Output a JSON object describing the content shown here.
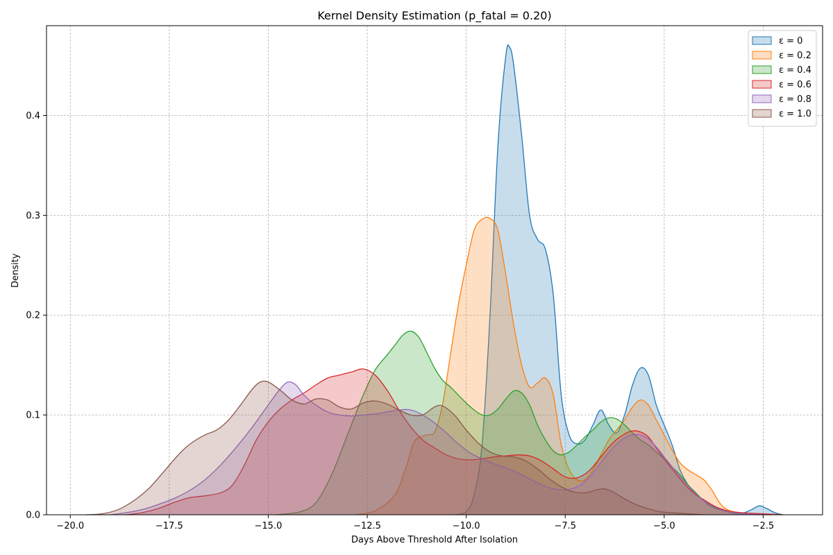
{
  "chart_data": {
    "type": "area",
    "title": "Kernel Density Estimation (p_fatal = 0.20)",
    "xlabel": "Days Above Threshold After Isolation",
    "ylabel": "Density",
    "xlim": [
      -20.6,
      -1.0
    ],
    "ylim": [
      0.0,
      0.49
    ],
    "xticks": [
      -20.0,
      -17.5,
      -15.0,
      -12.5,
      -10.0,
      -7.5,
      -5.0,
      -2.5
    ],
    "xtick_labels": [
      "−20.0",
      "−17.5",
      "−15.0",
      "−12.5",
      "−10.0",
      "−7.5",
      "−5.0",
      "−2.5"
    ],
    "yticks": [
      0.0,
      0.1,
      0.2,
      0.3,
      0.4
    ],
    "ytick_labels": [
      "0.0",
      "0.1",
      "0.2",
      "0.3",
      "0.4"
    ],
    "grid": true,
    "legend_placement": "top-right",
    "series": [
      {
        "name": "ε = 0",
        "color": "#1f77b4",
        "points": [
          [
            -10.3,
            0
          ],
          [
            -10.0,
            0.003
          ],
          [
            -9.8,
            0.02
          ],
          [
            -9.6,
            0.07
          ],
          [
            -9.4,
            0.2
          ],
          [
            -9.2,
            0.37
          ],
          [
            -9.0,
            0.46
          ],
          [
            -8.9,
            0.468
          ],
          [
            -8.8,
            0.45
          ],
          [
            -8.6,
            0.38
          ],
          [
            -8.4,
            0.3
          ],
          [
            -8.2,
            0.276
          ],
          [
            -8.0,
            0.266
          ],
          [
            -7.8,
            0.22
          ],
          [
            -7.6,
            0.12
          ],
          [
            -7.4,
            0.08
          ],
          [
            -7.2,
            0.071
          ],
          [
            -7.0,
            0.075
          ],
          [
            -6.8,
            0.09
          ],
          [
            -6.6,
            0.105
          ],
          [
            -6.4,
            0.09
          ],
          [
            -6.2,
            0.082
          ],
          [
            -6.0,
            0.1
          ],
          [
            -5.8,
            0.13
          ],
          [
            -5.6,
            0.147
          ],
          [
            -5.4,
            0.14
          ],
          [
            -5.2,
            0.11
          ],
          [
            -5.0,
            0.09
          ],
          [
            -4.8,
            0.07
          ],
          [
            -4.6,
            0.045
          ],
          [
            -4.4,
            0.03
          ],
          [
            -4.2,
            0.02
          ],
          [
            -4.0,
            0.015
          ],
          [
            -3.8,
            0.01
          ],
          [
            -3.5,
            0.004
          ],
          [
            -3.1,
            0.001
          ],
          [
            -2.8,
            0.005
          ],
          [
            -2.6,
            0.009
          ],
          [
            -2.4,
            0.006
          ],
          [
            -2.2,
            0.002
          ],
          [
            -2.0,
            0
          ]
        ]
      },
      {
        "name": "ε = 0.2",
        "color": "#ff7f0e",
        "points": [
          [
            -12.8,
            0
          ],
          [
            -12.3,
            0.004
          ],
          [
            -11.8,
            0.02
          ],
          [
            -11.5,
            0.05
          ],
          [
            -11.3,
            0.074
          ],
          [
            -11.0,
            0.08
          ],
          [
            -10.8,
            0.083
          ],
          [
            -10.6,
            0.11
          ],
          [
            -10.4,
            0.16
          ],
          [
            -10.2,
            0.21
          ],
          [
            -10.0,
            0.25
          ],
          [
            -9.8,
            0.285
          ],
          [
            -9.6,
            0.296
          ],
          [
            -9.4,
            0.297
          ],
          [
            -9.2,
            0.285
          ],
          [
            -9.0,
            0.24
          ],
          [
            -8.8,
            0.19
          ],
          [
            -8.6,
            0.15
          ],
          [
            -8.4,
            0.128
          ],
          [
            -8.2,
            0.132
          ],
          [
            -8.0,
            0.137
          ],
          [
            -7.8,
            0.12
          ],
          [
            -7.6,
            0.07
          ],
          [
            -7.4,
            0.045
          ],
          [
            -7.2,
            0.035
          ],
          [
            -7.0,
            0.035
          ],
          [
            -6.8,
            0.045
          ],
          [
            -6.6,
            0.06
          ],
          [
            -6.4,
            0.075
          ],
          [
            -6.2,
            0.085
          ],
          [
            -6.0,
            0.095
          ],
          [
            -5.8,
            0.108
          ],
          [
            -5.6,
            0.115
          ],
          [
            -5.4,
            0.11
          ],
          [
            -5.2,
            0.095
          ],
          [
            -5.0,
            0.08
          ],
          [
            -4.8,
            0.065
          ],
          [
            -4.6,
            0.052
          ],
          [
            -4.4,
            0.045
          ],
          [
            -4.2,
            0.04
          ],
          [
            -4.0,
            0.035
          ],
          [
            -3.8,
            0.025
          ],
          [
            -3.6,
            0.012
          ],
          [
            -3.4,
            0.005
          ],
          [
            -3.0,
            0.001
          ],
          [
            -2.6,
            0
          ]
        ]
      },
      {
        "name": "ε = 0.4",
        "color": "#2ca02c",
        "points": [
          [
            -14.8,
            0
          ],
          [
            -14.2,
            0.003
          ],
          [
            -13.8,
            0.012
          ],
          [
            -13.4,
            0.04
          ],
          [
            -13.0,
            0.08
          ],
          [
            -12.6,
            0.12
          ],
          [
            -12.3,
            0.145
          ],
          [
            -12.0,
            0.16
          ],
          [
            -11.8,
            0.17
          ],
          [
            -11.6,
            0.18
          ],
          [
            -11.4,
            0.184
          ],
          [
            -11.2,
            0.178
          ],
          [
            -11.0,
            0.163
          ],
          [
            -10.8,
            0.147
          ],
          [
            -10.6,
            0.135
          ],
          [
            -10.4,
            0.128
          ],
          [
            -10.2,
            0.12
          ],
          [
            -10.0,
            0.112
          ],
          [
            -9.8,
            0.105
          ],
          [
            -9.6,
            0.1
          ],
          [
            -9.4,
            0.1
          ],
          [
            -9.2,
            0.106
          ],
          [
            -9.0,
            0.116
          ],
          [
            -8.8,
            0.124
          ],
          [
            -8.6,
            0.122
          ],
          [
            -8.4,
            0.11
          ],
          [
            -8.2,
            0.09
          ],
          [
            -8.0,
            0.075
          ],
          [
            -7.8,
            0.064
          ],
          [
            -7.6,
            0.06
          ],
          [
            -7.4,
            0.063
          ],
          [
            -7.2,
            0.07
          ],
          [
            -7.0,
            0.078
          ],
          [
            -6.8,
            0.085
          ],
          [
            -6.6,
            0.093
          ],
          [
            -6.4,
            0.097
          ],
          [
            -6.2,
            0.096
          ],
          [
            -6.0,
            0.09
          ],
          [
            -5.8,
            0.082
          ],
          [
            -5.6,
            0.075
          ],
          [
            -5.4,
            0.07
          ],
          [
            -5.2,
            0.063
          ],
          [
            -5.0,
            0.056
          ],
          [
            -4.8,
            0.048
          ],
          [
            -4.6,
            0.04
          ],
          [
            -4.4,
            0.03
          ],
          [
            -4.2,
            0.022
          ],
          [
            -4.0,
            0.014
          ],
          [
            -3.8,
            0.008
          ],
          [
            -3.4,
            0.003
          ],
          [
            -3.0,
            0.001
          ],
          [
            -2.6,
            0
          ]
        ]
      },
      {
        "name": "ε = 0.6",
        "color": "#d62728",
        "points": [
          [
            -18.6,
            0
          ],
          [
            -18.2,
            0.002
          ],
          [
            -17.8,
            0.006
          ],
          [
            -17.4,
            0.012
          ],
          [
            -17.0,
            0.017
          ],
          [
            -16.6,
            0.019
          ],
          [
            -16.2,
            0.022
          ],
          [
            -15.9,
            0.03
          ],
          [
            -15.6,
            0.05
          ],
          [
            -15.3,
            0.075
          ],
          [
            -15.0,
            0.093
          ],
          [
            -14.7,
            0.106
          ],
          [
            -14.4,
            0.115
          ],
          [
            -14.1,
            0.122
          ],
          [
            -13.8,
            0.13
          ],
          [
            -13.5,
            0.137
          ],
          [
            -13.2,
            0.14
          ],
          [
            -12.9,
            0.143
          ],
          [
            -12.6,
            0.146
          ],
          [
            -12.3,
            0.14
          ],
          [
            -12.0,
            0.125
          ],
          [
            -11.7,
            0.105
          ],
          [
            -11.4,
            0.088
          ],
          [
            -11.1,
            0.075
          ],
          [
            -10.8,
            0.067
          ],
          [
            -10.5,
            0.06
          ],
          [
            -10.2,
            0.056
          ],
          [
            -9.9,
            0.055
          ],
          [
            -9.6,
            0.056
          ],
          [
            -9.3,
            0.058
          ],
          [
            -9.0,
            0.059
          ],
          [
            -8.7,
            0.06
          ],
          [
            -8.4,
            0.059
          ],
          [
            -8.1,
            0.054
          ],
          [
            -7.8,
            0.046
          ],
          [
            -7.5,
            0.038
          ],
          [
            -7.2,
            0.037
          ],
          [
            -6.9,
            0.044
          ],
          [
            -6.6,
            0.058
          ],
          [
            -6.3,
            0.072
          ],
          [
            -6.0,
            0.081
          ],
          [
            -5.8,
            0.084
          ],
          [
            -5.6,
            0.083
          ],
          [
            -5.4,
            0.078
          ],
          [
            -5.2,
            0.067
          ],
          [
            -5.0,
            0.056
          ],
          [
            -4.8,
            0.046
          ],
          [
            -4.6,
            0.036
          ],
          [
            -4.4,
            0.027
          ],
          [
            -4.2,
            0.02
          ],
          [
            -4.0,
            0.015
          ],
          [
            -3.7,
            0.008
          ],
          [
            -3.4,
            0.004
          ],
          [
            -3.0,
            0.002
          ],
          [
            -2.5,
            0.001
          ],
          [
            -2.0,
            0
          ]
        ]
      },
      {
        "name": "ε = 0.8",
        "color": "#9467bd",
        "points": [
          [
            -19.0,
            0
          ],
          [
            -18.6,
            0.002
          ],
          [
            -18.2,
            0.005
          ],
          [
            -17.8,
            0.01
          ],
          [
            -17.4,
            0.016
          ],
          [
            -17.0,
            0.024
          ],
          [
            -16.6,
            0.035
          ],
          [
            -16.2,
            0.05
          ],
          [
            -15.8,
            0.068
          ],
          [
            -15.4,
            0.088
          ],
          [
            -15.0,
            0.11
          ],
          [
            -14.7,
            0.126
          ],
          [
            -14.5,
            0.133
          ],
          [
            -14.3,
            0.13
          ],
          [
            -14.1,
            0.12
          ],
          [
            -13.8,
            0.11
          ],
          [
            -13.5,
            0.103
          ],
          [
            -13.2,
            0.1
          ],
          [
            -12.9,
            0.099
          ],
          [
            -12.6,
            0.1
          ],
          [
            -12.3,
            0.101
          ],
          [
            -12.0,
            0.103
          ],
          [
            -11.7,
            0.105
          ],
          [
            -11.4,
            0.105
          ],
          [
            -11.1,
            0.1
          ],
          [
            -10.8,
            0.092
          ],
          [
            -10.5,
            0.082
          ],
          [
            -10.2,
            0.071
          ],
          [
            -9.9,
            0.062
          ],
          [
            -9.6,
            0.056
          ],
          [
            -9.3,
            0.051
          ],
          [
            -9.0,
            0.047
          ],
          [
            -8.7,
            0.042
          ],
          [
            -8.4,
            0.036
          ],
          [
            -8.1,
            0.03
          ],
          [
            -7.8,
            0.026
          ],
          [
            -7.5,
            0.025
          ],
          [
            -7.2,
            0.028
          ],
          [
            -6.9,
            0.037
          ],
          [
            -6.6,
            0.052
          ],
          [
            -6.3,
            0.067
          ],
          [
            -6.0,
            0.077
          ],
          [
            -5.8,
            0.08
          ],
          [
            -5.6,
            0.08
          ],
          [
            -5.4,
            0.076
          ],
          [
            -5.2,
            0.068
          ],
          [
            -5.0,
            0.058
          ],
          [
            -4.8,
            0.048
          ],
          [
            -4.6,
            0.038
          ],
          [
            -4.4,
            0.029
          ],
          [
            -4.2,
            0.021
          ],
          [
            -4.0,
            0.014
          ],
          [
            -3.7,
            0.007
          ],
          [
            -3.4,
            0.003
          ],
          [
            -3.0,
            0.001
          ],
          [
            -2.5,
            0
          ]
        ]
      },
      {
        "name": "ε = 1.0",
        "color": "#8c564b",
        "points": [
          [
            -19.6,
            0
          ],
          [
            -19.2,
            0.001
          ],
          [
            -18.8,
            0.005
          ],
          [
            -18.4,
            0.014
          ],
          [
            -18.0,
            0.027
          ],
          [
            -17.6,
            0.045
          ],
          [
            -17.2,
            0.063
          ],
          [
            -16.9,
            0.073
          ],
          [
            -16.6,
            0.08
          ],
          [
            -16.3,
            0.085
          ],
          [
            -16.0,
            0.095
          ],
          [
            -15.7,
            0.11
          ],
          [
            -15.4,
            0.126
          ],
          [
            -15.2,
            0.133
          ],
          [
            -15.0,
            0.133
          ],
          [
            -14.7,
            0.125
          ],
          [
            -14.4,
            0.115
          ],
          [
            -14.1,
            0.111
          ],
          [
            -13.8,
            0.116
          ],
          [
            -13.5,
            0.115
          ],
          [
            -13.2,
            0.108
          ],
          [
            -12.9,
            0.106
          ],
          [
            -12.6,
            0.112
          ],
          [
            -12.3,
            0.114
          ],
          [
            -12.0,
            0.111
          ],
          [
            -11.7,
            0.105
          ],
          [
            -11.4,
            0.1
          ],
          [
            -11.1,
            0.1
          ],
          [
            -10.8,
            0.108
          ],
          [
            -10.6,
            0.109
          ],
          [
            -10.3,
            0.1
          ],
          [
            -10.0,
            0.085
          ],
          [
            -9.7,
            0.072
          ],
          [
            -9.4,
            0.063
          ],
          [
            -9.1,
            0.059
          ],
          [
            -8.8,
            0.058
          ],
          [
            -8.5,
            0.054
          ],
          [
            -8.2,
            0.046
          ],
          [
            -7.9,
            0.036
          ],
          [
            -7.6,
            0.028
          ],
          [
            -7.3,
            0.023
          ],
          [
            -7.0,
            0.022
          ],
          [
            -6.7,
            0.025
          ],
          [
            -6.5,
            0.026
          ],
          [
            -6.3,
            0.023
          ],
          [
            -6.0,
            0.016
          ],
          [
            -5.7,
            0.01
          ],
          [
            -5.4,
            0.006
          ],
          [
            -5.1,
            0.003
          ],
          [
            -4.8,
            0.002
          ],
          [
            -4.4,
            0.001
          ],
          [
            -4.0,
            0
          ]
        ]
      }
    ]
  }
}
